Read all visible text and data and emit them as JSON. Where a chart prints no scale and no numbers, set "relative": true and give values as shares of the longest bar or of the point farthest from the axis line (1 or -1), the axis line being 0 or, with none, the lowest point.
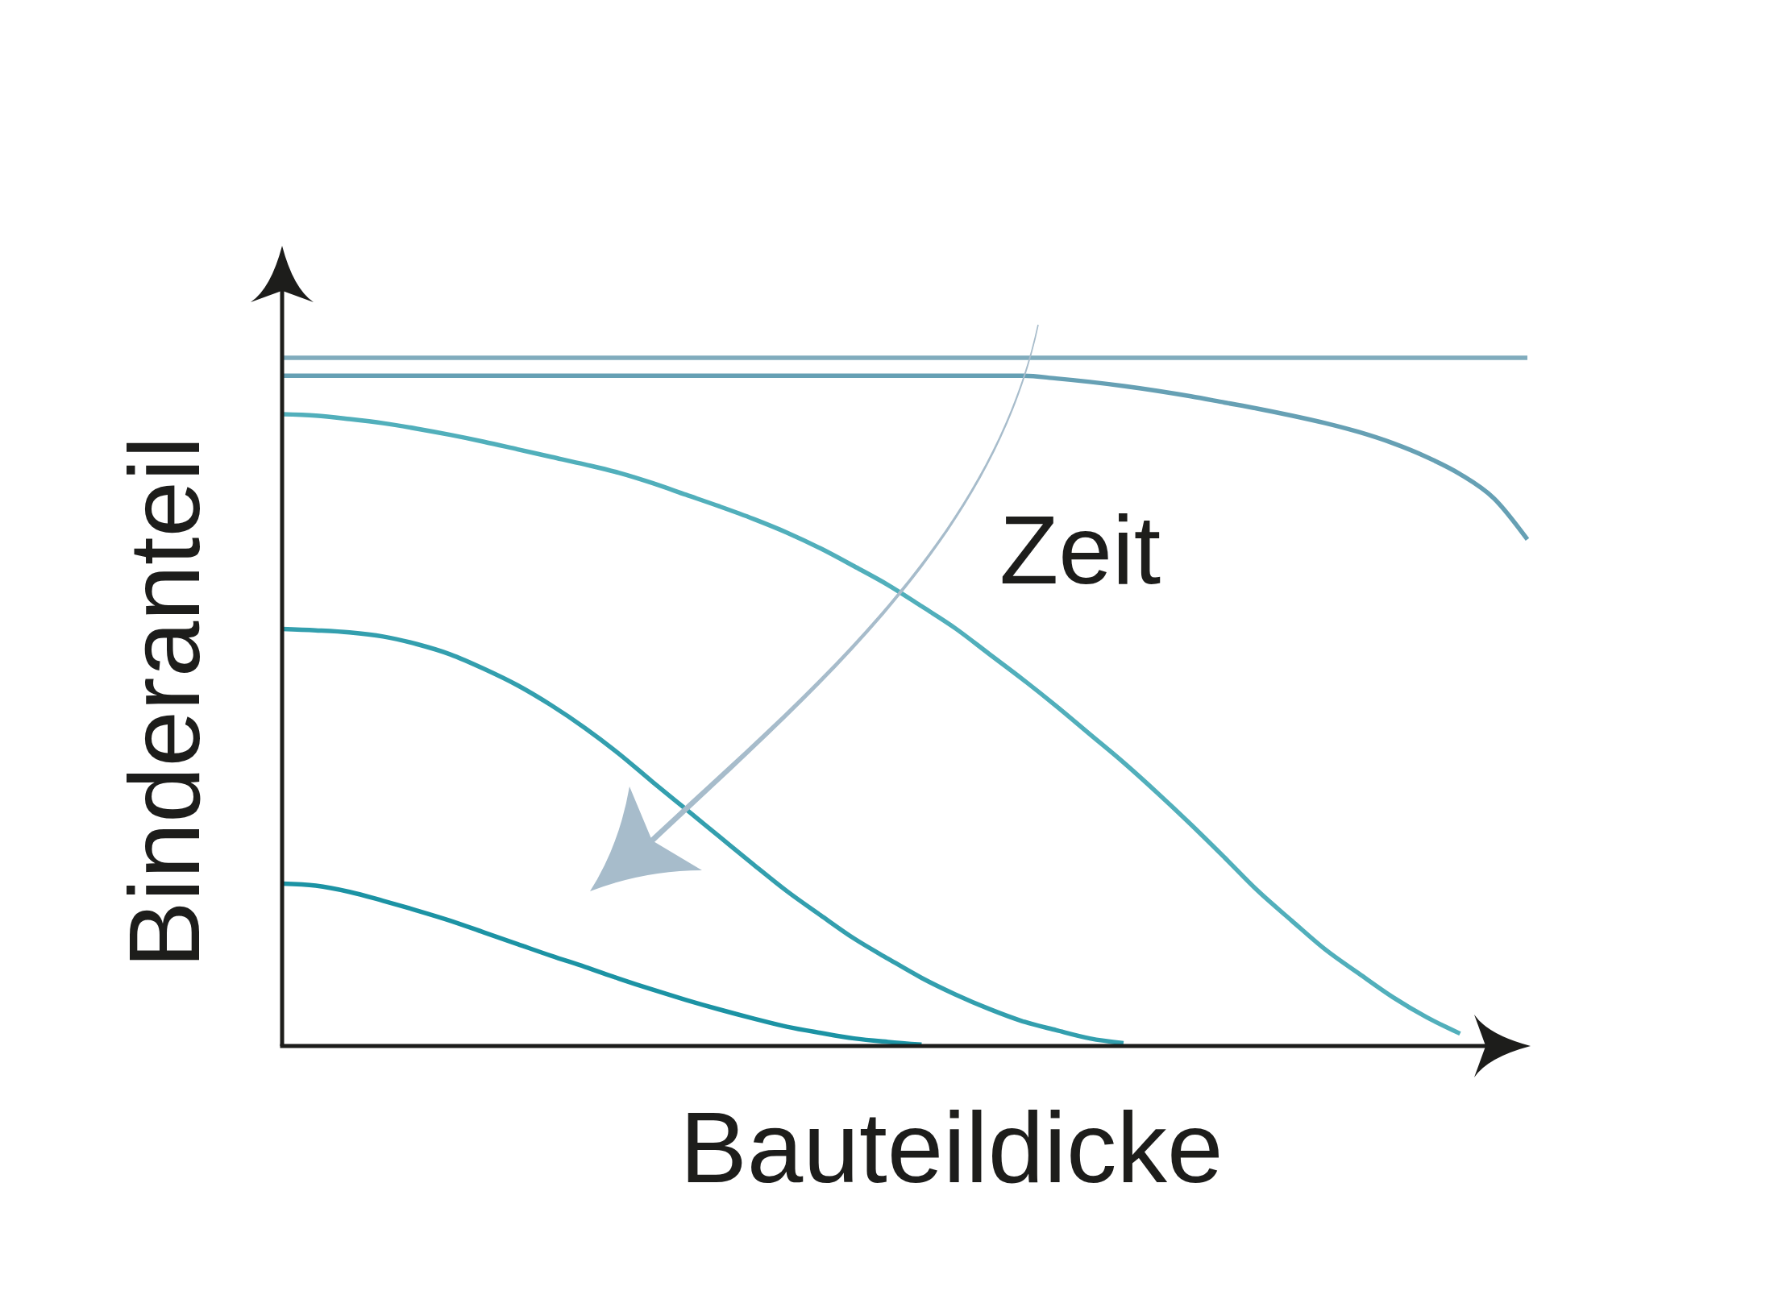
{
  "chart_data": {
    "type": "line",
    "relative": true,
    "xlabel": "Bauteildicke",
    "ylabel": "Binderanteil",
    "annotations": [
      "Zeit"
    ],
    "categories": [
      null,
      null,
      null,
      null,
      null,
      null,
      null,
      null,
      null,
      null,
      null,
      null,
      null,
      null,
      null,
      null,
      null,
      null,
      null,
      null,
      null,
      null,
      null,
      null,
      null,
      null,
      null,
      null,
      null,
      null,
      null,
      null,
      null,
      null,
      null,
      null,
      null,
      null
    ],
    "series": [
      {
        "color": "#80acbd",
        "values": [
          1,
          1,
          1,
          1,
          1,
          1,
          1,
          1,
          1,
          1,
          1,
          1,
          1,
          1,
          1,
          1,
          1,
          1,
          1,
          1,
          1,
          1,
          1,
          1,
          1,
          1,
          1,
          1,
          1,
          1,
          1,
          1,
          1,
          1,
          1,
          1,
          1,
          1
        ]
      },
      {
        "color": "#66a0b4",
        "values": [
          0.974,
          0.974,
          0.974,
          0.974,
          0.974,
          0.974,
          0.974,
          0.974,
          0.974,
          0.974,
          0.974,
          0.974,
          0.974,
          0.974,
          0.974,
          0.974,
          0.974,
          0.974,
          0.974,
          0.974,
          0.974,
          0.974,
          0.974,
          0.97,
          0.965,
          0.959,
          0.952,
          0.944,
          0.935,
          0.926,
          0.916,
          0.905,
          0.892,
          0.876,
          0.856,
          0.831,
          0.796,
          0.736
        ]
      },
      {
        "color": "#51afbb",
        "values": [
          0.918,
          0.916,
          0.911,
          0.905,
          0.897,
          0.888,
          0.878,
          0.867,
          0.856,
          0.845,
          0.833,
          0.818,
          0.801,
          0.784,
          0.766,
          0.746,
          0.723,
          0.697,
          0.67,
          0.639,
          0.607,
          0.57,
          0.533,
          0.494,
          0.453,
          0.412,
          0.368,
          0.322,
          0.274,
          0.225,
          0.182,
          0.14,
          0.105,
          0.071,
          0.042,
          0.018,
          null,
          null
        ]
      },
      {
        "color": "#339fae",
        "values": [
          0.606,
          0.604,
          0.601,
          0.595,
          0.584,
          0.569,
          0.548,
          0.524,
          0.495,
          0.462,
          0.425,
          0.384,
          0.344,
          0.304,
          0.264,
          0.225,
          0.19,
          0.156,
          0.127,
          0.099,
          0.075,
          0.054,
          0.036,
          0.023,
          0.011,
          0.004,
          null,
          null,
          null,
          null,
          null,
          null,
          null,
          null,
          null,
          null,
          null,
          null
        ]
      },
      {
        "color": "#1c93a4",
        "values": [
          0.236,
          0.233,
          0.224,
          0.211,
          0.197,
          0.182,
          0.165,
          0.148,
          0.131,
          0.115,
          0.098,
          0.082,
          0.067,
          0.053,
          0.04,
          0.028,
          0.019,
          0.011,
          0.006,
          0.002,
          null,
          null,
          null,
          null,
          null,
          null,
          null,
          null,
          null,
          null,
          null,
          null,
          null,
          null,
          null,
          null,
          null,
          null
        ]
      }
    ]
  }
}
